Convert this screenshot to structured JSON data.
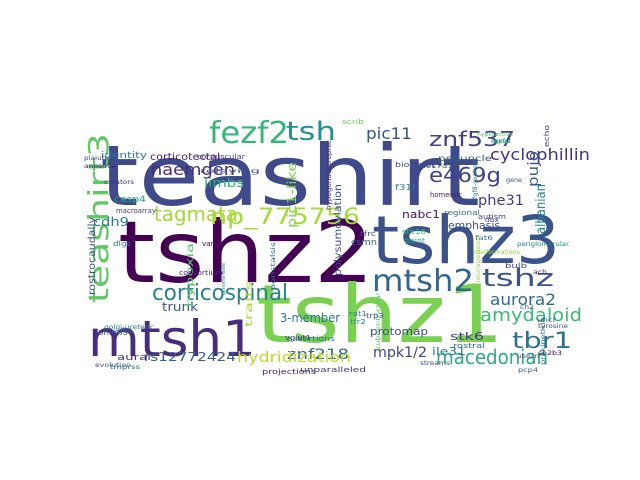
{
  "words": [
    {
      "text": "teashirt",
      "color": "#3e4a89"
    },
    {
      "text": "tshz2",
      "color": "#440154"
    },
    {
      "text": "tshz3",
      "color": "#3b528b"
    },
    {
      "text": "tshz1",
      "color": "#7ad151"
    },
    {
      "text": "mtsh1",
      "color": "#472d7b"
    },
    {
      "text": "teashirt3",
      "color": "#5ec962"
    },
    {
      "text": "mtsh2",
      "color": "#30698e"
    },
    {
      "text": "tshz",
      "color": "#3b528b"
    },
    {
      "text": "fezf2",
      "color": "#35b779"
    },
    {
      "text": "tsh",
      "color": "#21918c"
    },
    {
      "text": "znf537",
      "color": "#424086"
    },
    {
      "text": "tbr1",
      "color": "#2c728e"
    },
    {
      "text": "macedonian",
      "color": "#28ae80"
    },
    {
      "text": "corticospinal",
      "color": "#26828e"
    },
    {
      "text": "np_775756",
      "color": "#a5db36"
    },
    {
      "text": "haemgen",
      "color": "#472c7a"
    },
    {
      "text": "e469g",
      "color": "#404387"
    },
    {
      "text": "amydaloid",
      "color": "#3aba76"
    },
    {
      "text": "aurora2",
      "color": "#31678e"
    },
    {
      "text": "tagmata",
      "color": "#a2da37"
    },
    {
      "text": "cyclophillin",
      "color": "#46327e"
    },
    {
      "text": "pic11",
      "color": "#3a548c"
    },
    {
      "text": "phe31",
      "color": "#443983"
    },
    {
      "text": "znf218",
      "color": "#31688e"
    },
    {
      "text": "mpk1/2",
      "color": "#404387"
    },
    {
      "text": "rs12772424",
      "color": "#355f8d"
    },
    {
      "text": "hydridization",
      "color": "#bddf26"
    },
    {
      "text": "3-member",
      "color": "#2a778e"
    },
    {
      "text": "pujo",
      "color": "#355e8d"
    },
    {
      "text": "albanian",
      "color": "#23898e"
    },
    {
      "text": "cdh9",
      "color": "#2a788e"
    },
    {
      "text": "corticotectal",
      "color": "#482173"
    },
    {
      "text": "nabc1",
      "color": "#471063"
    },
    {
      "text": "stk6",
      "color": "#443a83"
    },
    {
      "text": "ile31",
      "color": "#26818e"
    },
    {
      "text": "protomap",
      "color": "#3f4788"
    },
    {
      "text": "trunk",
      "color": "#38588c"
    },
    {
      "text": "limbs",
      "color": "#2db27d"
    },
    {
      "text": "casp4",
      "color": "#22a884"
    },
    {
      "text": "emphasis",
      "color": "#3b528b"
    },
    {
      "text": "identity",
      "color": "#2a788e"
    },
    {
      "text": "rostrocaudally",
      "color": "#3d4e8a"
    },
    {
      "text": "pic1-like",
      "color": "#7fd34e"
    },
    {
      "text": "polysumoylation",
      "color": "#3e4989"
    },
    {
      "text": "hypoxia",
      "color": "#52c569"
    },
    {
      "text": "traits",
      "color": "#a8db34"
    },
    {
      "text": "aural",
      "color": "#46307e"
    },
    {
      "text": "csmn",
      "color": "#31688e"
    },
    {
      "text": "scrib",
      "color": "#6ccd5a"
    },
    {
      "text": "hypogonadotrophic",
      "color": "#46337f"
    },
    {
      "text": "macroarray",
      "color": "#453781"
    },
    {
      "text": "relaying",
      "color": "#3d4d8a"
    },
    {
      "text": "vangl",
      "color": "#46085c"
    },
    {
      "text": "corpuscular",
      "color": "#443b84"
    },
    {
      "text": "consortium",
      "color": "#482979"
    },
    {
      "text": "assertions",
      "color": "#2d708e"
    },
    {
      "text": "peduncle",
      "color": "#34618d"
    },
    {
      "text": "biologist",
      "color": "#3f4788"
    },
    {
      "text": "f31i",
      "color": "#25848e"
    },
    {
      "text": "autism",
      "color": "#3e4a89"
    },
    {
      "text": "regional",
      "color": "#2e6e8e"
    },
    {
      "text": "homeotic",
      "color": "#481b6d"
    },
    {
      "text": "projections",
      "color": "#482475"
    },
    {
      "text": "unparalleled",
      "color": "#463480"
    },
    {
      "text": "subventricular",
      "color": "#5ac864"
    },
    {
      "text": "streams",
      "color": "#3a548c"
    },
    {
      "text": "rostral",
      "color": "#2f6c8e"
    },
    {
      "text": "stk16",
      "color": "#37b878"
    },
    {
      "text": "paint",
      "color": "#22a785"
    },
    {
      "text": "bulb",
      "color": "#3e4989"
    },
    {
      "text": "vglut1",
      "color": "#424186"
    },
    {
      "text": "tfr2",
      "color": "#23888e"
    },
    {
      "text": "tfrc",
      "color": "#38588c"
    },
    {
      "text": "peristalsis",
      "color": "#2e6e8e"
    },
    {
      "text": "rat1",
      "color": "#2b758e"
    },
    {
      "text": "genome-wide",
      "color": "#27808e"
    },
    {
      "text": "bhlh65",
      "color": "#3f4889"
    },
    {
      "text": "pcp4",
      "color": "#34608d"
    },
    {
      "text": "sh2b3",
      "color": "#440154"
    },
    {
      "text": "ephb1",
      "color": "#2b748e"
    },
    {
      "text": "evolution",
      "color": "#3c4f8a"
    },
    {
      "text": "anosmia",
      "color": "#481c6e"
    },
    {
      "text": "curators",
      "color": "#46307e"
    },
    {
      "text": "plaiubeta",
      "color": "#3c4f8a"
    },
    {
      "text": "fat6",
      "color": "#2c738e"
    },
    {
      "text": "tmprss",
      "color": "#2e6f8e"
    },
    {
      "text": "neurogenesis",
      "color": "#9bd93c"
    },
    {
      "text": "ube2n",
      "color": "#3c508b"
    },
    {
      "text": "periglomerular",
      "color": "#26828e"
    },
    {
      "text": "prokineticin",
      "color": "#31678e"
    },
    {
      "text": "uncl",
      "color": "#39568c"
    },
    {
      "text": "ch2",
      "color": "#3a538b"
    },
    {
      "text": "echo",
      "color": "#443983"
    },
    {
      "text": "expert",
      "color": "#26828e"
    },
    {
      "text": "gene",
      "color": "#3e4a89"
    },
    {
      "text": "tyrosine",
      "color": "#3b528b"
    },
    {
      "text": "ach",
      "color": "#472d7b"
    },
    {
      "text": "qrfp",
      "color": "#3aba76"
    },
    {
      "text": "golgi-ureteric",
      "color": "#2a788e"
    },
    {
      "text": "dlgs",
      "color": "#2c728e"
    },
    {
      "text": "sic17a7",
      "color": "#3e4989"
    },
    {
      "text": "hyperactive",
      "color": "#50c46a"
    },
    {
      "text": "fgf8-soaked",
      "color": "#26828e"
    },
    {
      "text": "malformations",
      "color": "#8fd744"
    },
    {
      "text": "dbx",
      "color": "#424086"
    },
    {
      "text": "trp3",
      "color": "#3b528b"
    }
  ]
}
